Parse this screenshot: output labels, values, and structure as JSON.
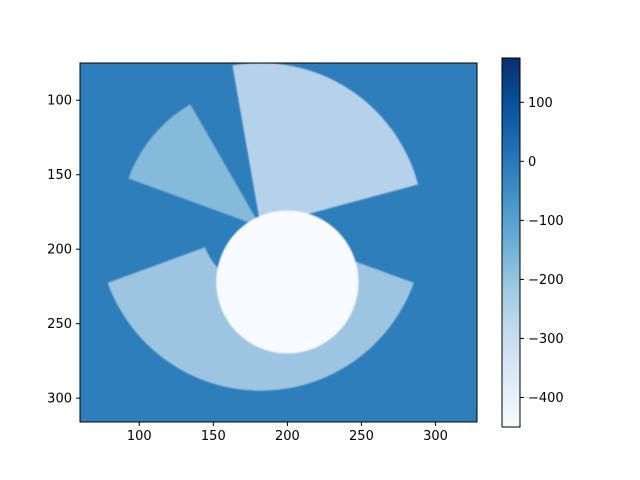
{
  "chart_data": {
    "type": "heatmap",
    "title": "",
    "xlabel": "",
    "ylabel": "",
    "xlim": [
      60,
      328
    ],
    "ylim": [
      316,
      75
    ],
    "y_axis_inverted": true,
    "xticks": [
      100,
      150,
      200,
      250,
      300
    ],
    "yticks": [
      100,
      150,
      200,
      250,
      300
    ],
    "colorbar": {
      "cmap": "Blues",
      "range": [
        -450,
        175
      ],
      "ticks": [
        100,
        0,
        -100,
        -200,
        -300,
        -400
      ],
      "tick_labels": [
        "100",
        "0",
        "−100",
        "−200",
        "−300",
        "−400"
      ]
    },
    "background_value": 5,
    "background_color": "#2e7ebc",
    "center": [
      182,
      185
    ],
    "description_regions": [
      {
        "shape": "disc",
        "center": [
          200,
          222
        ],
        "radius": 48,
        "value": -450
      },
      {
        "shape": "wedge",
        "center": [
          182,
          185
        ],
        "from_deg": 15,
        "to_deg": 100,
        "r_inner": 5,
        "r_outer": 110,
        "value": -320
      },
      {
        "shape": "wedge",
        "center": [
          182,
          185
        ],
        "from_deg": 120,
        "to_deg": 160,
        "r_inner": 5,
        "r_outer": 95,
        "value": -200
      },
      {
        "shape": "wedge",
        "center": [
          182,
          185
        ],
        "from_deg": 200,
        "to_deg": 340,
        "r_inner": 40,
        "r_outer": 110,
        "value": -250
      }
    ],
    "grid": false,
    "legend": "none"
  }
}
